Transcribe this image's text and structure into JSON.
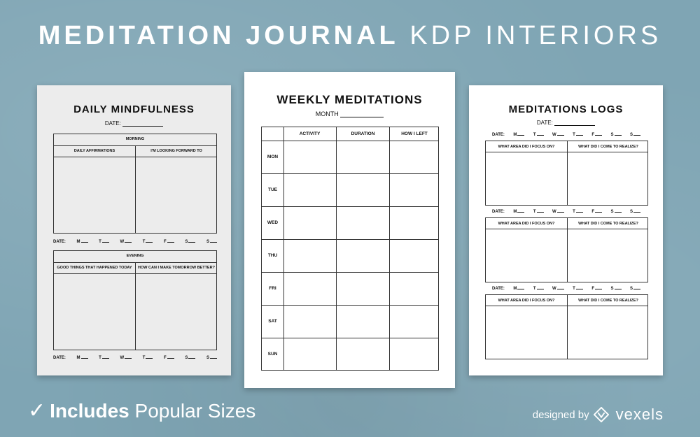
{
  "headline": {
    "bold": "MEDITATION JOURNAL",
    "light": "KDP INTERIORS"
  },
  "page1": {
    "title": "DAILY MINDFULNESS",
    "date_label": "DATE:",
    "morning": {
      "header": "MORNING",
      "col1": "DAILY AFFIRMATIONS",
      "col2": "I'M LOOKING FORWARD TO"
    },
    "evening": {
      "header": "EVENING",
      "col1": "GOOD THINGS THAT HAPPENED TODAY",
      "col2": "HOW CAN I MAKE TOMORROW BETTER?"
    },
    "days_prefix": "DATE:",
    "days": [
      "M",
      "T",
      "W",
      "T",
      "F",
      "S",
      "S"
    ]
  },
  "page2": {
    "title": "WEEKLY MEDITATIONS",
    "month_label": "MONTH",
    "columns": [
      "ACTIVITY",
      "DURATION",
      "HOW I LEFT"
    ],
    "rows": [
      "MON",
      "TUE",
      "WED",
      "THU",
      "FRI",
      "SAT",
      "SUN"
    ]
  },
  "page3": {
    "title": "MEDITATIONS LOGS",
    "date_label": "DATE:",
    "days_prefix": "DATE:",
    "days": [
      "M",
      "T",
      "W",
      "T",
      "F",
      "S",
      "S"
    ],
    "col1": "WHAT AREA DID I FOCUS ON?",
    "col2": "WHAT DID I COME TO REALIZE?"
  },
  "footer": {
    "check": "✓",
    "bold": "Includes",
    "rest": "Popular Sizes",
    "designed_by": "designed by",
    "brand": "vexels"
  },
  "colors": {
    "background": "#7fa5b4",
    "page_gray": "#ececec",
    "page_white": "#ffffff"
  }
}
